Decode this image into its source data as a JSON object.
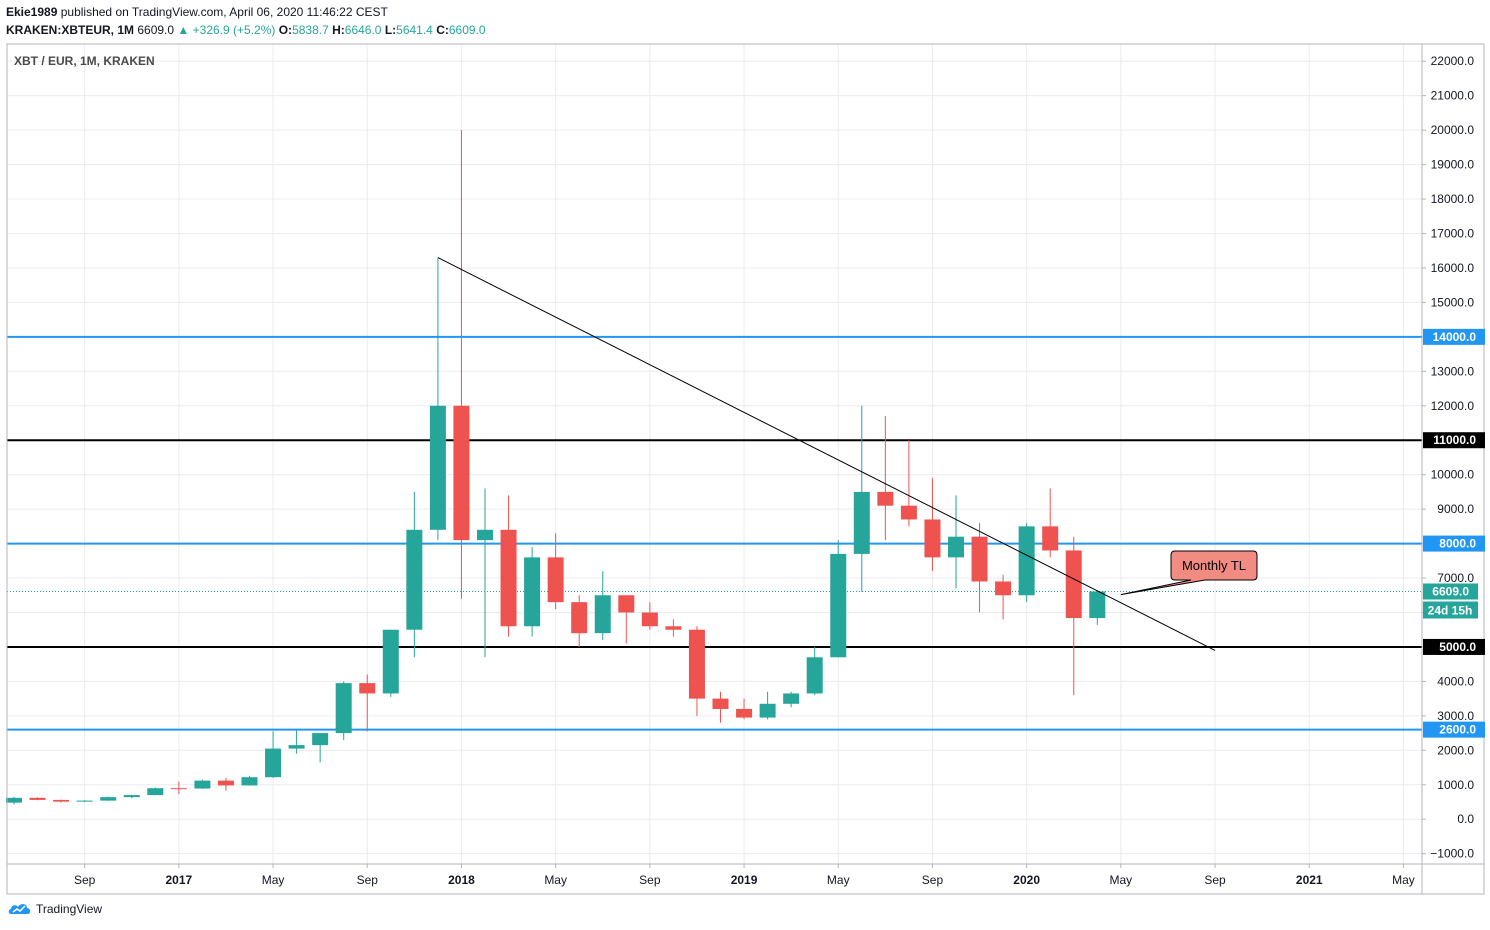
{
  "header": {
    "author": "Ekie1989",
    "published_text": "published on TradingView.com, April 06, 2020 11:46:22 CEST",
    "symbol": "KRAKEN:XBTEUR, 1M",
    "last": "6609.0",
    "change": "+326.9 (+5.2%)",
    "o_label": "O:",
    "o_value": "5838.7",
    "h_label": "H:",
    "h_value": "6646.0",
    "l_label": "L:",
    "l_value": "5641.4",
    "c_label": "C:",
    "c_value": "6609.0"
  },
  "footer": {
    "brand": "TradingView"
  },
  "colors": {
    "up": "#26a69a",
    "down": "#ef5350",
    "blue_level": "#2196f3",
    "black_level": "#000000",
    "grid": "#e9ecf0"
  },
  "chart_data": {
    "type": "candlestick",
    "title": "XBT / EUR, 1M, KRAKEN",
    "ylim": [
      -1300,
      22500
    ],
    "y_ticks": [
      -1000,
      0,
      1000,
      2000,
      3000,
      4000,
      5000,
      6000,
      7000,
      8000,
      9000,
      10000,
      11000,
      12000,
      13000,
      14000,
      15000,
      16000,
      17000,
      18000,
      19000,
      20000,
      21000,
      22000
    ],
    "x_ticks": [
      {
        "label": "Sep",
        "index": 3
      },
      {
        "label": "2017",
        "index": 7
      },
      {
        "label": "May",
        "index": 11
      },
      {
        "label": "Sep",
        "index": 15
      },
      {
        "label": "2018",
        "index": 19
      },
      {
        "label": "May",
        "index": 23
      },
      {
        "label": "Sep",
        "index": 27
      },
      {
        "label": "2019",
        "index": 31
      },
      {
        "label": "May",
        "index": 35
      },
      {
        "label": "Sep",
        "index": 39
      },
      {
        "label": "2020",
        "index": 43
      },
      {
        "label": "May",
        "index": 47
      },
      {
        "label": "Sep",
        "index": 51
      },
      {
        "label": "2021",
        "index": 55
      },
      {
        "label": "May",
        "index": 59
      }
    ],
    "candles": [
      {
        "date": "2016-06",
        "o": 480,
        "h": 650,
        "l": 430,
        "c": 620
      },
      {
        "date": "2016-07",
        "o": 620,
        "h": 640,
        "l": 550,
        "c": 560
      },
      {
        "date": "2016-08",
        "o": 560,
        "h": 570,
        "l": 480,
        "c": 510
      },
      {
        "date": "2016-09",
        "o": 510,
        "h": 550,
        "l": 500,
        "c": 540
      },
      {
        "date": "2016-10",
        "o": 540,
        "h": 660,
        "l": 530,
        "c": 640
      },
      {
        "date": "2016-11",
        "o": 640,
        "h": 710,
        "l": 610,
        "c": 700
      },
      {
        "date": "2016-12",
        "o": 700,
        "h": 920,
        "l": 690,
        "c": 900
      },
      {
        "date": "2017-01",
        "o": 900,
        "h": 1090,
        "l": 730,
        "c": 890
      },
      {
        "date": "2017-02",
        "o": 890,
        "h": 1150,
        "l": 880,
        "c": 1120
      },
      {
        "date": "2017-03",
        "o": 1120,
        "h": 1200,
        "l": 830,
        "c": 980
      },
      {
        "date": "2017-04",
        "o": 980,
        "h": 1260,
        "l": 970,
        "c": 1220
      },
      {
        "date": "2017-05",
        "o": 1220,
        "h": 2550,
        "l": 1200,
        "c": 2050
      },
      {
        "date": "2017-06",
        "o": 2050,
        "h": 2600,
        "l": 1900,
        "c": 2150
      },
      {
        "date": "2017-07",
        "o": 2150,
        "h": 2450,
        "l": 1650,
        "c": 2500
      },
      {
        "date": "2017-08",
        "o": 2500,
        "h": 4000,
        "l": 2300,
        "c": 3950
      },
      {
        "date": "2017-09",
        "o": 3950,
        "h": 4200,
        "l": 2550,
        "c": 3650
      },
      {
        "date": "2017-10",
        "o": 3650,
        "h": 5500,
        "l": 3550,
        "c": 5500
      },
      {
        "date": "2017-11",
        "o": 5500,
        "h": 9500,
        "l": 4700,
        "c": 8400
      },
      {
        "date": "2017-12",
        "o": 8400,
        "h": 16300,
        "l": 8100,
        "c": 12000
      },
      {
        "date": "2018-01",
        "o": 12000,
        "h": 20000,
        "l": 6400,
        "c": 8100
      },
      {
        "date": "2018-02",
        "o": 8100,
        "h": 9600,
        "l": 4700,
        "c": 8400
      },
      {
        "date": "2018-03",
        "o": 8400,
        "h": 9400,
        "l": 5300,
        "c": 5600
      },
      {
        "date": "2018-04",
        "o": 5600,
        "h": 7900,
        "l": 5300,
        "c": 7600
      },
      {
        "date": "2018-05",
        "o": 7600,
        "h": 8300,
        "l": 6100,
        "c": 6300
      },
      {
        "date": "2018-06",
        "o": 6300,
        "h": 6500,
        "l": 5000,
        "c": 5400
      },
      {
        "date": "2018-07",
        "o": 5400,
        "h": 7200,
        "l": 5200,
        "c": 6500
      },
      {
        "date": "2018-08",
        "o": 6500,
        "h": 6500,
        "l": 5100,
        "c": 6000
      },
      {
        "date": "2018-09",
        "o": 6000,
        "h": 6300,
        "l": 5500,
        "c": 5600
      },
      {
        "date": "2018-10",
        "o": 5600,
        "h": 5800,
        "l": 5300,
        "c": 5500
      },
      {
        "date": "2018-11",
        "o": 5500,
        "h": 5600,
        "l": 3000,
        "c": 3500
      },
      {
        "date": "2018-12",
        "o": 3500,
        "h": 3700,
        "l": 2800,
        "c": 3200
      },
      {
        "date": "2019-01",
        "o": 3200,
        "h": 3500,
        "l": 2900,
        "c": 2950
      },
      {
        "date": "2019-02",
        "o": 2950,
        "h": 3700,
        "l": 2900,
        "c": 3350
      },
      {
        "date": "2019-03",
        "o": 3350,
        "h": 3700,
        "l": 3250,
        "c": 3650
      },
      {
        "date": "2019-04",
        "o": 3650,
        "h": 5000,
        "l": 3600,
        "c": 4700
      },
      {
        "date": "2019-05",
        "o": 4700,
        "h": 8100,
        "l": 4700,
        "c": 7700
      },
      {
        "date": "2019-06",
        "o": 7700,
        "h": 12000,
        "l": 6600,
        "c": 9500
      },
      {
        "date": "2019-07",
        "o": 9500,
        "h": 11700,
        "l": 8100,
        "c": 9100
      },
      {
        "date": "2019-08",
        "o": 9100,
        "h": 11000,
        "l": 8500,
        "c": 8700
      },
      {
        "date": "2019-09",
        "o": 8700,
        "h": 9900,
        "l": 7200,
        "c": 7600
      },
      {
        "date": "2019-10",
        "o": 7600,
        "h": 9400,
        "l": 6700,
        "c": 8200
      },
      {
        "date": "2019-11",
        "o": 8200,
        "h": 8600,
        "l": 6000,
        "c": 6900
      },
      {
        "date": "2019-12",
        "o": 6900,
        "h": 7100,
        "l": 5800,
        "c": 6500
      },
      {
        "date": "2020-01",
        "o": 6500,
        "h": 8600,
        "l": 6300,
        "c": 8500
      },
      {
        "date": "2020-02",
        "o": 8500,
        "h": 9600,
        "l": 7600,
        "c": 7800
      },
      {
        "date": "2020-03",
        "o": 7800,
        "h": 8200,
        "l": 3600,
        "c": 5839
      },
      {
        "date": "2020-04",
        "o": 5838.7,
        "h": 6646.0,
        "l": 5641.4,
        "c": 6609.0
      }
    ],
    "levels": [
      {
        "value": 14000,
        "color": "blue",
        "label": "14000.0"
      },
      {
        "value": 11000,
        "color": "black",
        "label": "11000.0"
      },
      {
        "value": 8000,
        "color": "blue",
        "label": "8000.0"
      },
      {
        "value": 5000,
        "color": "black",
        "label": "5000.0"
      },
      {
        "value": 2600,
        "color": "blue",
        "label": "2600.0"
      }
    ],
    "current_price": {
      "value": 6609.0,
      "label": "6609.0",
      "countdown": "24d 15h"
    },
    "trendline": {
      "start": {
        "index": 18,
        "value": 16300
      },
      "end": {
        "index": 51,
        "value": 4900
      }
    },
    "annotation": {
      "text": "Monthly TL",
      "point": {
        "index": 47,
        "value": 6520
      }
    }
  }
}
